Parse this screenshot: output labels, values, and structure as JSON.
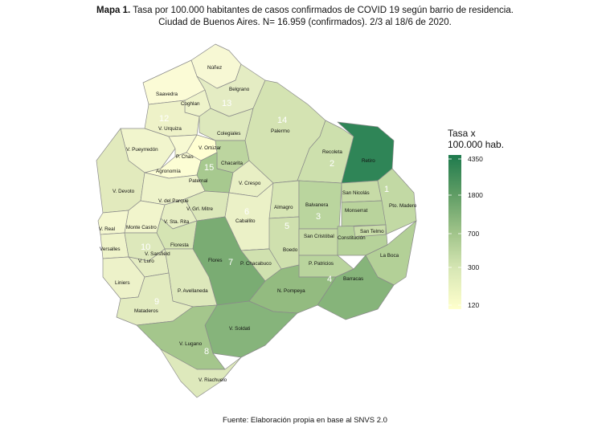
{
  "title": {
    "bold": "Mapa 1.",
    "line1": " Tasa por 100.000 habitantes de casos confirmados de COVID 19 según barrio de residencia.",
    "line2": "Ciudad de Buenos Aires. N= 16.959 (confirmados). 2/3 al 18/6 de 2020."
  },
  "legend": {
    "title_line1": "Tasa x",
    "title_line2": "100.000 hab.",
    "ticks": [
      "4350",
      "1800",
      "700",
      "300",
      "120"
    ],
    "color_top": "#1e7a4d",
    "color_bottom": "#ffffcc"
  },
  "neighbourhood_labels": {
    "nunez": "Núñez",
    "saavedra": "Saavedra",
    "belgrano": "Belgrano",
    "coghlan": "Coghlan",
    "v_urquiza": "V. Urquiza",
    "colegiales": "Colegiales",
    "palermo": "Palermo",
    "recoleta": "Recoleta",
    "retiro": "Retiro",
    "v_pueyrredon": "V. Pueyrredón",
    "v_ortuzar": "V. Ortúzar",
    "p_chas": "P. Chas",
    "chacarita": "Chacarita",
    "agronomia": "Agronomía",
    "paternal": "Paternal",
    "v_crespo": "V. Crespo",
    "v_devoto": "V. Devoto",
    "v_del_parque": "V. del Parque",
    "v_grl_mitre": "V. Grl. Mitre",
    "v_sta_rita": "V. Sta. Rita",
    "caballito": "Caballito",
    "almagro": "Almagro",
    "balvanera": "Balvanera",
    "san_nicolas": "San Nicolás",
    "pto_madero": "Pto. Madero",
    "monserrat": "Monserrat",
    "v_real": "V. Real",
    "monte_castro": "Monte Castro",
    "versalles": "Versalles",
    "floresta": "Floresta",
    "v_sarsfield": "V. Sarsfield",
    "v_luro": "V. Luro",
    "flores": "Flores",
    "p_chacabuco": "P. Chacabuco",
    "boedo": "Boedo",
    "san_cristobal": "San Cristóbal",
    "constitucion": "Constitución",
    "san_telmo": "San Telmo",
    "la_boca": "La Boca",
    "p_patricios": "P. Patricios",
    "liniers": "Liniers",
    "p_avellaneda": "P. Avellaneda",
    "mataderos": "Mataderos",
    "n_pompeya": "N. Pompeya",
    "barracas": "Barracas",
    "v_soldati": "V. Soldati",
    "v_lugano": "V. Lugano",
    "v_riachuelo": "V. Riachuelo"
  },
  "comunas": [
    "1",
    "2",
    "3",
    "4",
    "5",
    "6",
    "7",
    "8",
    "9",
    "10",
    "12",
    "13",
    "14",
    "15"
  ],
  "source": "Fuente: Elaboración propia en base al SNVS 2.0"
}
